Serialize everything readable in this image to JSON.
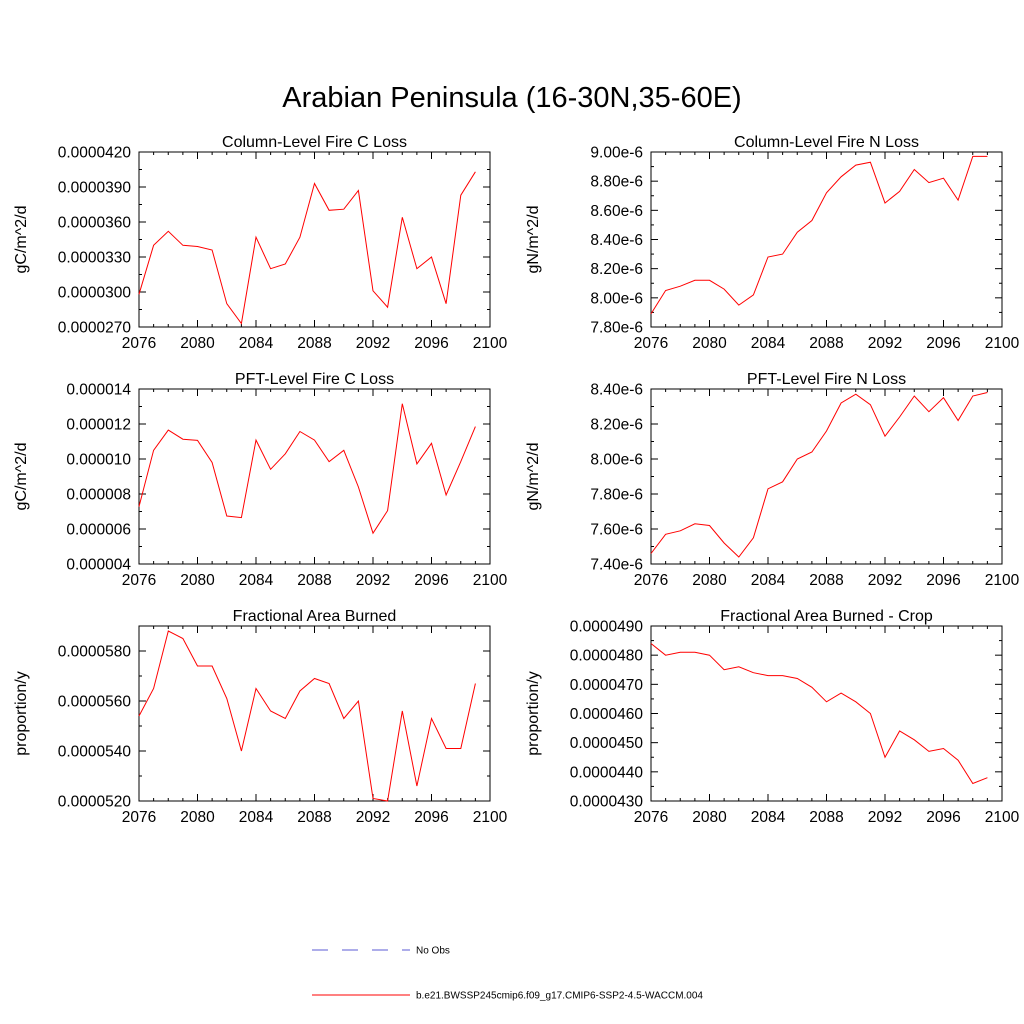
{
  "figure": {
    "title": "Arabian Peninsula (16-30N,35-60E)"
  },
  "legend": {
    "entries": [
      {
        "label": "No Obs",
        "color": "#5b5bd6",
        "dash": true
      },
      {
        "label": "b.e21.BWSSP245cmip6.f09_g17.CMIP6-SSP2-4.5-WACCM.004",
        "color": "#ff0000",
        "dash": false
      }
    ]
  },
  "chart_data": [
    {
      "type": "line",
      "title": "Column-Level Fire C Loss",
      "ylabel": "gC/m^2/d",
      "xlim": [
        2076,
        2100
      ],
      "xticks": [
        2076,
        2080,
        2084,
        2088,
        2092,
        2096,
        2100
      ],
      "ylim": [
        2.7e-05,
        4.2e-05
      ],
      "yticks": [
        "0.0000270",
        "0.0000300",
        "0.0000330",
        "0.0000360",
        "0.0000390",
        "0.0000420"
      ],
      "yvals": [
        2.7e-05,
        3e-05,
        3.3e-05,
        3.6e-05,
        3.9e-05,
        4.2e-05
      ],
      "series": [
        {
          "color": "#ff0000",
          "x": [
            2076,
            2077,
            2078,
            2079,
            2080,
            2081,
            2082,
            2083,
            2084,
            2085,
            2086,
            2087,
            2088,
            2089,
            2090,
            2091,
            2092,
            2093,
            2094,
            2095,
            2096,
            2097,
            2098,
            2099
          ],
          "values": [
            2.98e-05,
            3.4e-05,
            3.52e-05,
            3.4e-05,
            3.39e-05,
            3.36e-05,
            2.9e-05,
            2.73e-05,
            3.47e-05,
            3.2e-05,
            3.24e-05,
            3.47e-05,
            3.93e-05,
            3.7e-05,
            3.71e-05,
            3.87e-05,
            3.01e-05,
            2.87e-05,
            3.64e-05,
            3.2e-05,
            3.3e-05,
            2.9e-05,
            3.83e-05,
            4.03e-05
          ]
        }
      ]
    },
    {
      "type": "line",
      "title": "Column-Level Fire N Loss",
      "ylabel": "gN/m^2/d",
      "xlim": [
        2076,
        2100
      ],
      "xticks": [
        2076,
        2080,
        2084,
        2088,
        2092,
        2096,
        2100
      ],
      "ylim": [
        7.8e-06,
        9e-06
      ],
      "yticks": [
        "7.80e-6",
        "8.00e-6",
        "8.20e-6",
        "8.40e-6",
        "8.60e-6",
        "8.80e-6",
        "9.00e-6"
      ],
      "yvals": [
        7.8e-06,
        8e-06,
        8.2e-06,
        8.4e-06,
        8.6e-06,
        8.8e-06,
        9e-06
      ],
      "series": [
        {
          "color": "#ff0000",
          "x": [
            2076,
            2077,
            2078,
            2079,
            2080,
            2081,
            2082,
            2083,
            2084,
            2085,
            2086,
            2087,
            2088,
            2089,
            2090,
            2091,
            2092,
            2093,
            2094,
            2095,
            2096,
            2097,
            2098,
            2099
          ],
          "values": [
            7.89e-06,
            8.05e-06,
            8.08e-06,
            8.12e-06,
            8.12e-06,
            8.06e-06,
            7.95e-06,
            8.02e-06,
            8.28e-06,
            8.3e-06,
            8.45e-06,
            8.53e-06,
            8.72e-06,
            8.83e-06,
            8.91e-06,
            8.93e-06,
            8.65e-06,
            8.73e-06,
            8.88e-06,
            8.79e-06,
            8.82e-06,
            8.67e-06,
            8.97e-06,
            8.97e-06
          ]
        }
      ]
    },
    {
      "type": "line",
      "title": "PFT-Level Fire C Loss",
      "ylabel": "gC/m^2/d",
      "xlim": [
        2076,
        2100
      ],
      "xticks": [
        2076,
        2080,
        2084,
        2088,
        2092,
        2096,
        2100
      ],
      "ylim": [
        4e-06,
        1.4e-05
      ],
      "yticks": [
        "0.000004",
        "0.000006",
        "0.000008",
        "0.000010",
        "0.000012",
        "0.000014"
      ],
      "yvals": [
        4e-06,
        6e-06,
        8e-06,
        1e-05,
        1.2e-05,
        1.4e-05
      ],
      "series": [
        {
          "color": "#ff0000",
          "x": [
            2076,
            2077,
            2078,
            2079,
            2080,
            2081,
            2082,
            2083,
            2084,
            2085,
            2086,
            2087,
            2088,
            2089,
            2090,
            2091,
            2092,
            2093,
            2094,
            2095,
            2096,
            2097,
            2098,
            2099
          ],
          "values": [
            7.28e-06,
            1.05e-05,
            1.165e-05,
            1.113e-05,
            1.106e-05,
            9.8e-06,
            6.74e-06,
            6.65e-06,
            1.108e-05,
            9.41e-06,
            1.03e-05,
            1.157e-05,
            1.108e-05,
            9.85e-06,
            1.05e-05,
            8.4e-06,
            5.76e-06,
            7.05e-06,
            1.316e-05,
            9.72e-06,
            1.09e-05,
            7.94e-06,
            9.85e-06,
            1.185e-05
          ]
        }
      ]
    },
    {
      "type": "line",
      "title": "PFT-Level Fire N Loss",
      "ylabel": "gN/m^2/d",
      "xlim": [
        2076,
        2100
      ],
      "xticks": [
        2076,
        2080,
        2084,
        2088,
        2092,
        2096,
        2100
      ],
      "ylim": [
        7.4e-06,
        8.4e-06
      ],
      "yticks": [
        "7.40e-6",
        "7.60e-6",
        "7.80e-6",
        "8.00e-6",
        "8.20e-6",
        "8.40e-6"
      ],
      "yvals": [
        7.4e-06,
        7.6e-06,
        7.8e-06,
        8e-06,
        8.2e-06,
        8.4e-06
      ],
      "series": [
        {
          "color": "#ff0000",
          "x": [
            2076,
            2077,
            2078,
            2079,
            2080,
            2081,
            2082,
            2083,
            2084,
            2085,
            2086,
            2087,
            2088,
            2089,
            2090,
            2091,
            2092,
            2093,
            2094,
            2095,
            2096,
            2097,
            2098,
            2099
          ],
          "values": [
            7.46e-06,
            7.57e-06,
            7.59e-06,
            7.63e-06,
            7.62e-06,
            7.52e-06,
            7.44e-06,
            7.55e-06,
            7.83e-06,
            7.87e-06,
            8e-06,
            8.04e-06,
            8.16e-06,
            8.32e-06,
            8.37e-06,
            8.31e-06,
            8.13e-06,
            8.24e-06,
            8.36e-06,
            8.27e-06,
            8.35e-06,
            8.22e-06,
            8.36e-06,
            8.38e-06
          ]
        }
      ]
    },
    {
      "type": "line",
      "title": "Fractional Area Burned",
      "ylabel": "proportion/y",
      "xlim": [
        2076,
        2100
      ],
      "xticks": [
        2076,
        2080,
        2084,
        2088,
        2092,
        2096,
        2100
      ],
      "ylim": [
        5.2e-05,
        5.9e-05
      ],
      "yticks": [
        "0.0000520",
        "0.0000540",
        "0.0000560",
        "0.0000580"
      ],
      "yvals": [
        5.2e-05,
        5.4e-05,
        5.6e-05,
        5.8e-05
      ],
      "series": [
        {
          "color": "#ff0000",
          "x": [
            2076,
            2077,
            2078,
            2079,
            2080,
            2081,
            2082,
            2083,
            2084,
            2085,
            2086,
            2087,
            2088,
            2089,
            2090,
            2091,
            2092,
            2093,
            2094,
            2095,
            2096,
            2097,
            2098,
            2099
          ],
          "values": [
            5.54e-05,
            5.65e-05,
            5.88e-05,
            5.85e-05,
            5.74e-05,
            5.74e-05,
            5.61e-05,
            5.4e-05,
            5.65e-05,
            5.56e-05,
            5.53e-05,
            5.64e-05,
            5.69e-05,
            5.67e-05,
            5.53e-05,
            5.6e-05,
            5.21e-05,
            5.2e-05,
            5.56e-05,
            5.26e-05,
            5.53e-05,
            5.41e-05,
            5.41e-05,
            5.67e-05
          ]
        }
      ]
    },
    {
      "type": "line",
      "title": "Fractional Area Burned - Crop",
      "ylabel": "proportion/y",
      "xlim": [
        2076,
        2100
      ],
      "xticks": [
        2076,
        2080,
        2084,
        2088,
        2092,
        2096,
        2100
      ],
      "ylim": [
        4.3e-05,
        4.9e-05
      ],
      "yticks": [
        "0.0000430",
        "0.0000440",
        "0.0000450",
        "0.0000460",
        "0.0000470",
        "0.0000480",
        "0.0000490"
      ],
      "yvals": [
        4.3e-05,
        4.4e-05,
        4.5e-05,
        4.6e-05,
        4.7e-05,
        4.8e-05,
        4.9e-05
      ],
      "series": [
        {
          "color": "#ff0000",
          "x": [
            2076,
            2077,
            2078,
            2079,
            2080,
            2081,
            2082,
            2083,
            2084,
            2085,
            2086,
            2087,
            2088,
            2089,
            2090,
            2091,
            2092,
            2093,
            2094,
            2095,
            2096,
            2097,
            2098,
            2099
          ],
          "values": [
            4.84e-05,
            4.8e-05,
            4.81e-05,
            4.81e-05,
            4.8e-05,
            4.75e-05,
            4.76e-05,
            4.74e-05,
            4.73e-05,
            4.73e-05,
            4.72e-05,
            4.69e-05,
            4.64e-05,
            4.67e-05,
            4.64e-05,
            4.6e-05,
            4.45e-05,
            4.54e-05,
            4.51e-05,
            4.47e-05,
            4.48e-05,
            4.44e-05,
            4.36e-05,
            4.38e-05
          ]
        }
      ]
    }
  ]
}
